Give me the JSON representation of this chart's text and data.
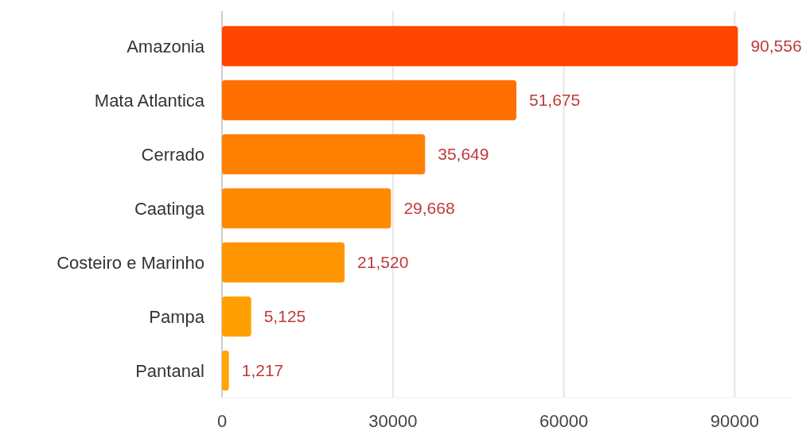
{
  "chart_data": {
    "type": "bar",
    "orientation": "horizontal",
    "categories": [
      "Amazonia",
      "Mata Atlantica",
      "Cerrado",
      "Caatinga",
      "Costeiro e Marinho",
      "Pampa",
      "Pantanal"
    ],
    "values": [
      90556,
      51675,
      35649,
      29668,
      21520,
      5125,
      1217
    ],
    "value_labels": [
      "90,556",
      "51,675",
      "35,649",
      "29,668",
      "21,520",
      "5,125",
      "1,217"
    ],
    "colors": [
      "#ff4500",
      "#ff7000",
      "#ff8000",
      "#ff8a00",
      "#ff9600",
      "#ffa000",
      "#ffa500"
    ],
    "xlim": [
      0,
      100000
    ],
    "xticks": [
      0,
      30000,
      60000,
      90000
    ],
    "grid": "x"
  }
}
